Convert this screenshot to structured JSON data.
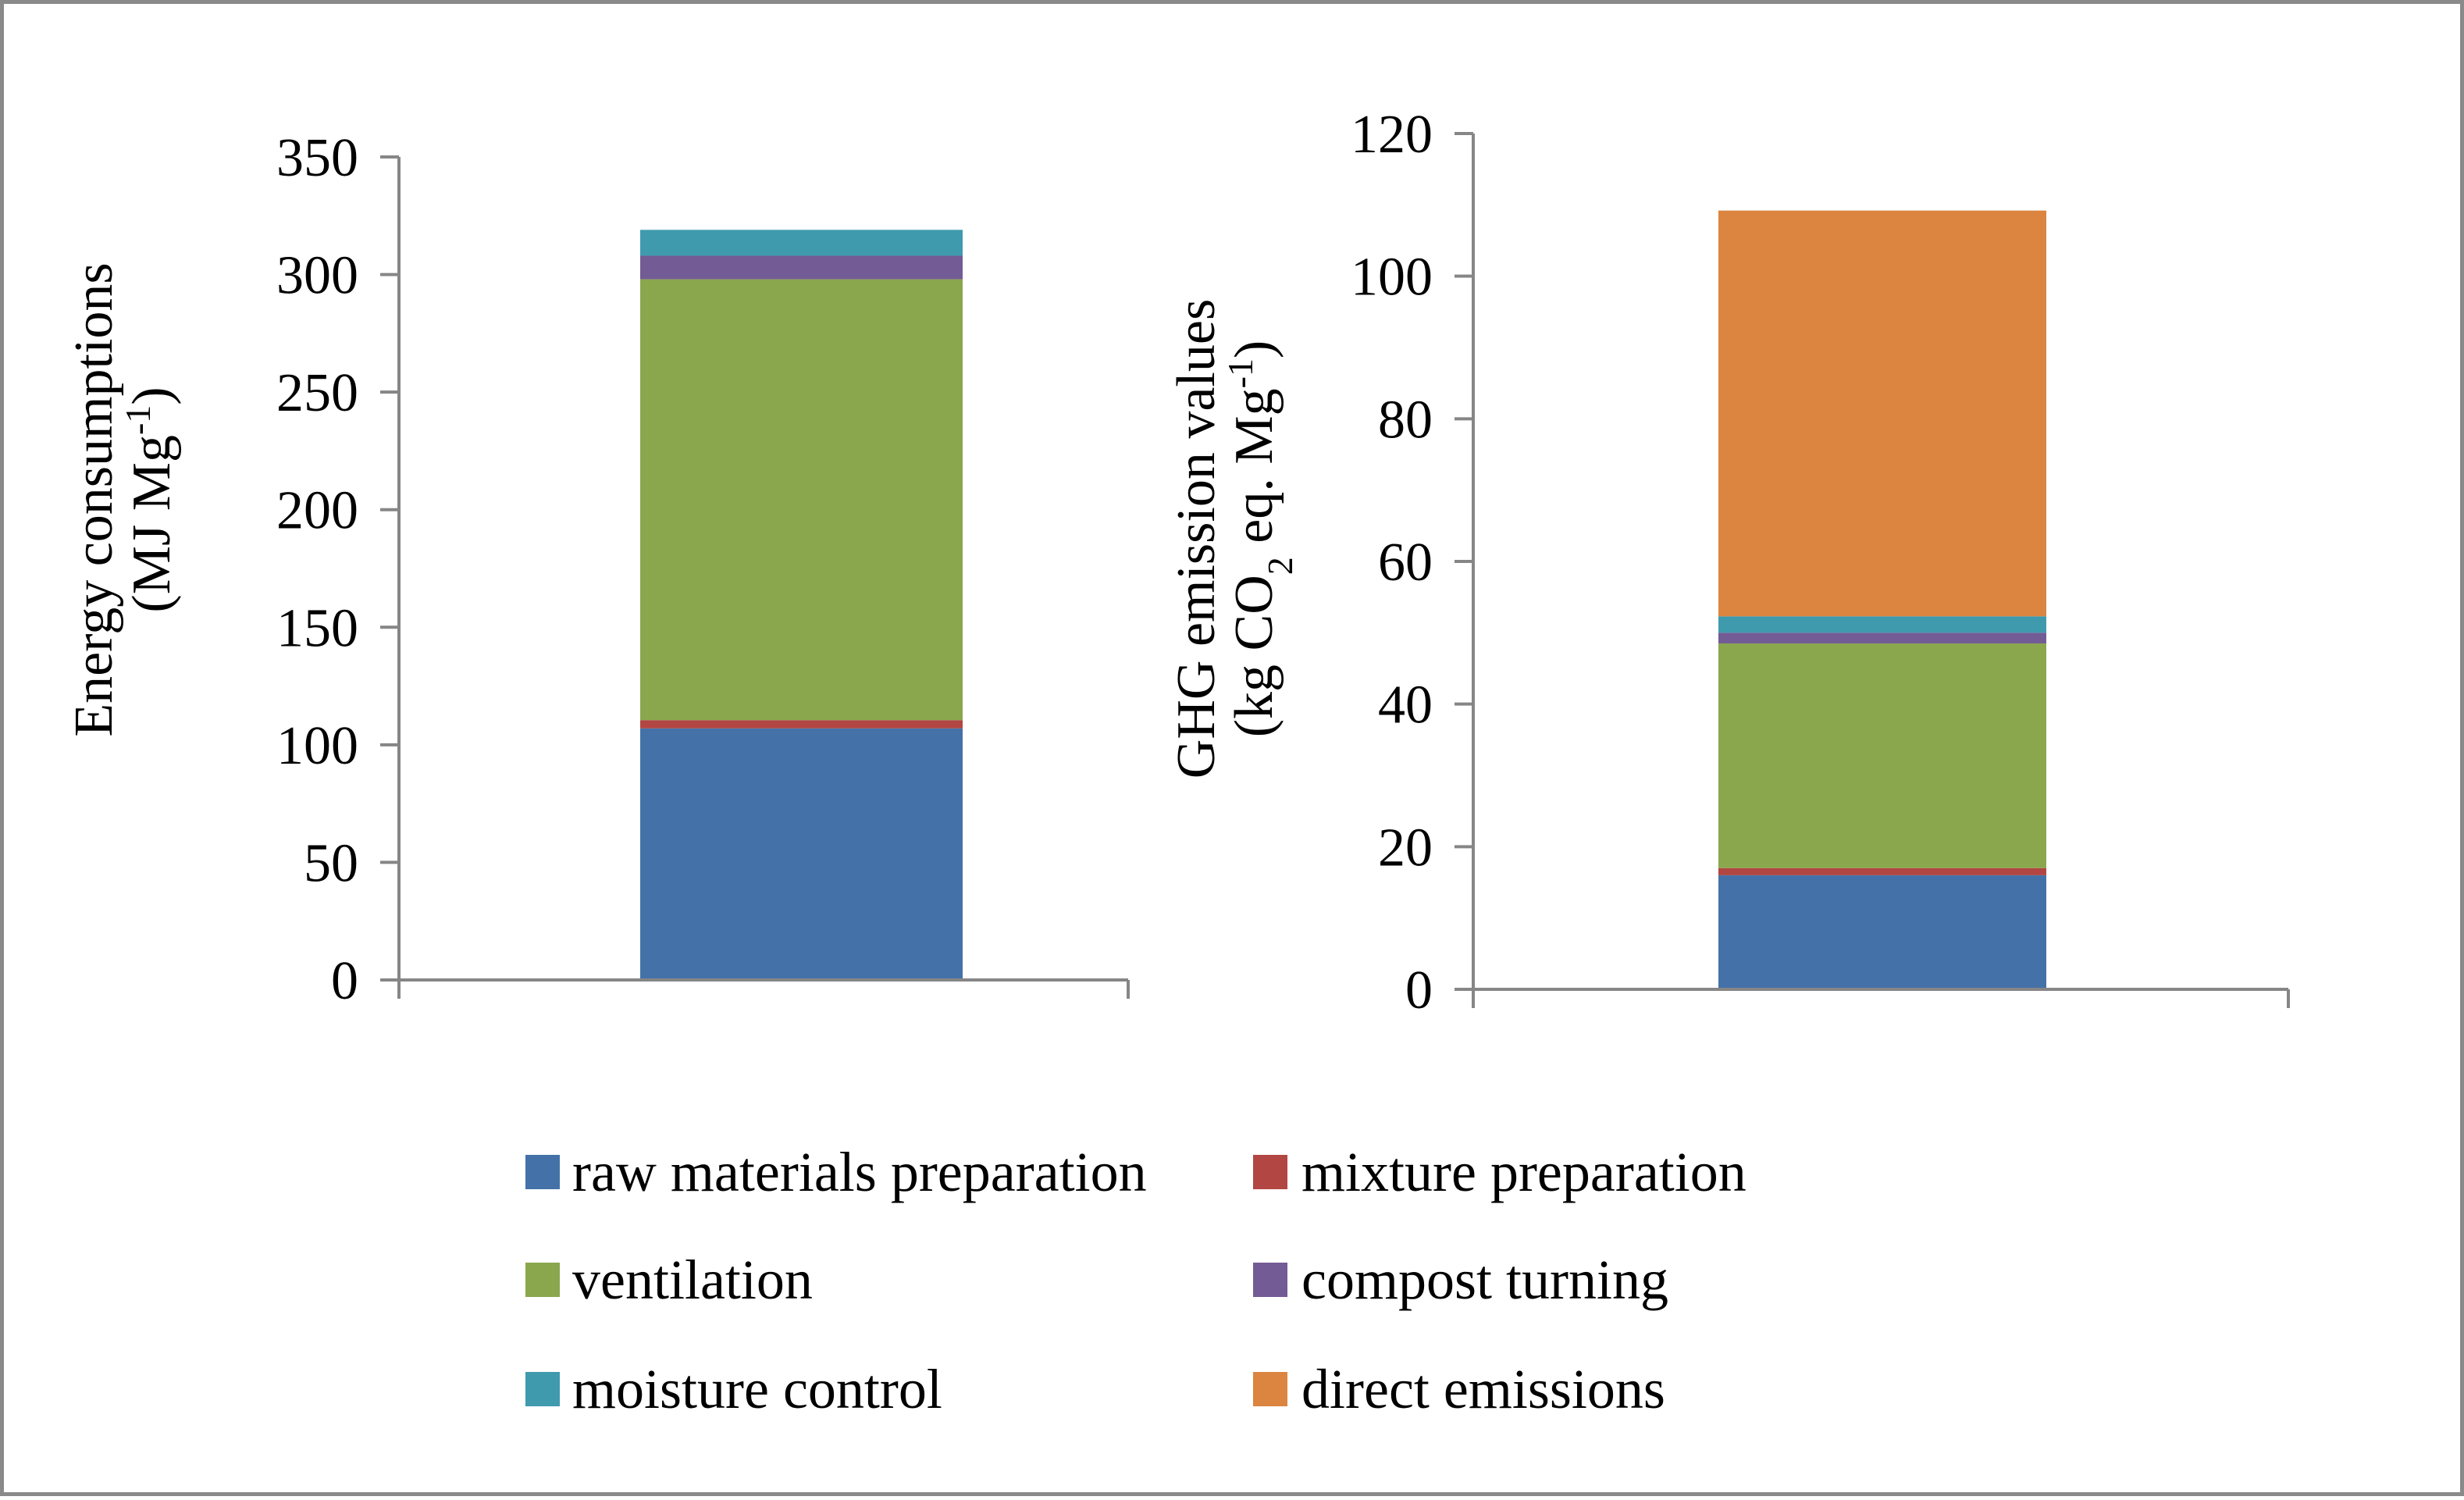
{
  "chart_data": [
    {
      "type": "bar",
      "stacked": true,
      "title": "",
      "xlabel": "",
      "ylabel_line1": "Energy consumptions",
      "ylabel_line2_prefix": "(MJ Mg",
      "ylabel_line2_sup": "-1",
      "ylabel_line2_suffix": ")",
      "ylim": [
        0,
        350
      ],
      "yticks": [
        0,
        50,
        100,
        150,
        200,
        250,
        300,
        350
      ],
      "categories": [
        ""
      ],
      "series": [
        {
          "name": "raw materials preparation",
          "values": [
            107
          ]
        },
        {
          "name": "mixture preparation",
          "values": [
            3.5
          ]
        },
        {
          "name": "ventilation",
          "values": [
            187.5
          ]
        },
        {
          "name": "compost turning",
          "values": [
            10
          ]
        },
        {
          "name": "moisture control",
          "values": [
            11
          ]
        }
      ]
    },
    {
      "type": "bar",
      "stacked": true,
      "title": "",
      "xlabel": "",
      "ylabel_line1": "GHG emission values",
      "ylabel_line2_prefix": "(kg CO",
      "ylabel_line2_sub": "2",
      "ylabel_line2_mid": " eq. Mg",
      "ylabel_line2_sup": "-1",
      "ylabel_line2_suffix": ")",
      "ylim": [
        0,
        120
      ],
      "yticks": [
        0,
        20,
        40,
        60,
        80,
        100,
        120
      ],
      "categories": [
        ""
      ],
      "series": [
        {
          "name": "raw materials preparation",
          "values": [
            16
          ]
        },
        {
          "name": "mixture preparation",
          "values": [
            1
          ]
        },
        {
          "name": "ventilation",
          "values": [
            31.5
          ]
        },
        {
          "name": "compost turning",
          "values": [
            1.5
          ]
        },
        {
          "name": "moisture control",
          "values": [
            2.3
          ]
        },
        {
          "name": "direct emissions",
          "values": [
            56.9
          ]
        }
      ]
    }
  ],
  "legend": {
    "placement": "bottom",
    "items": [
      {
        "label": "raw materials preparation",
        "color": "#4472a8"
      },
      {
        "label": "mixture preparation",
        "color": "#b14643"
      },
      {
        "label": "ventilation",
        "color": "#8aa74d"
      },
      {
        "label": "compost turning",
        "color": "#735b95"
      },
      {
        "label": "moisture control",
        "color": "#3f9aae"
      },
      {
        "label": "direct emissions",
        "color": "#db8540"
      }
    ]
  },
  "colors": {
    "raw materials preparation": "#4472a8",
    "mixture preparation": "#b14643",
    "ventilation": "#8aa74d",
    "compost turning": "#735b95",
    "moisture control": "#3f9aae",
    "direct emissions": "#db8540",
    "axis": "#868686"
  }
}
